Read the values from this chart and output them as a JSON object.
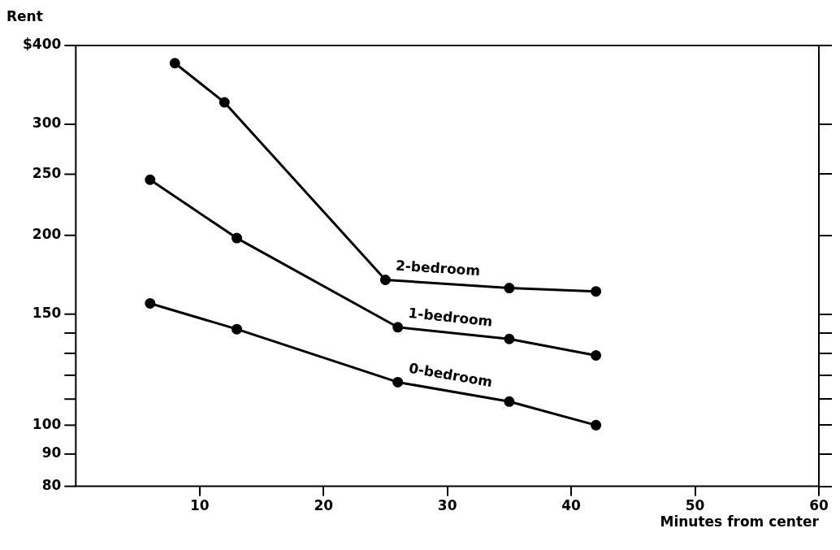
{
  "chart_data": {
    "type": "line",
    "xlabel": "Minutes from center",
    "ylabel": "Rent",
    "xlim": [
      0,
      60
    ],
    "xticks": [
      10,
      20,
      30,
      40,
      50,
      60
    ],
    "ylim": [
      80,
      400
    ],
    "yticks": [
      80,
      90,
      100,
      {
        "value": 110,
        "label": null
      },
      {
        "value": 120,
        "label": null
      },
      {
        "value": 130,
        "label": null
      },
      {
        "value": 140,
        "label": null
      },
      150,
      200,
      250,
      300,
      {
        "value": 400,
        "label": "$400"
      }
    ],
    "log": "y",
    "grid": false,
    "legend": false,
    "marker": "circle",
    "line_style": "solid",
    "series": [
      {
        "name": "2-bedroom",
        "color": "#000000",
        "x": [
          8,
          12,
          25,
          35,
          42
        ],
        "values": [
          375,
          325,
          170,
          165,
          163
        ]
      },
      {
        "name": "1-bedroom",
        "color": "#000000",
        "x": [
          6,
          13,
          26,
          35,
          42
        ],
        "values": [
          245,
          198,
          143,
          137,
          129
        ]
      },
      {
        "name": "0-bedroom",
        "color": "#000000",
        "x": [
          6,
          13,
          26,
          35,
          42
        ],
        "values": [
          156,
          142,
          117,
          109,
          100
        ]
      }
    ]
  }
}
